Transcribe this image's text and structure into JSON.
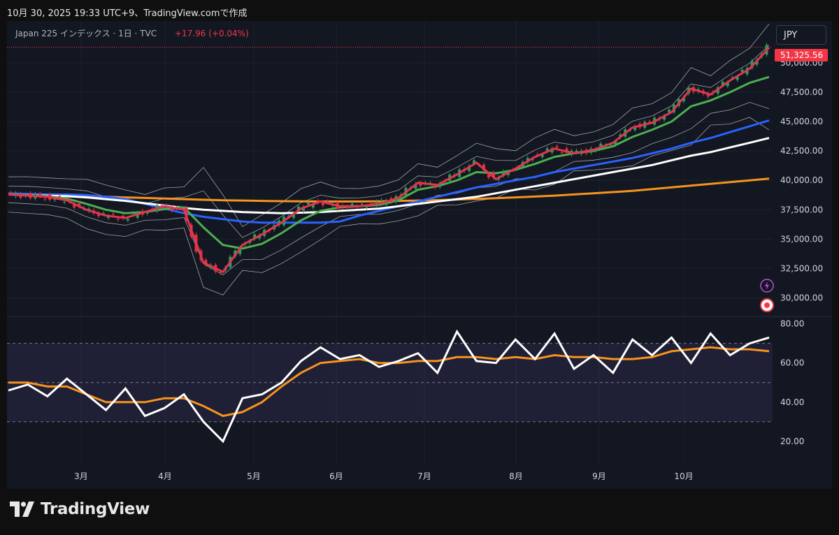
{
  "header": {
    "snapshot_text": "10月 30, 2025 19:33 UTC+9、TradingView.comで作成"
  },
  "legend": {
    "symbol_text": "Japan 225 インデックス · 1日 · TVC",
    "change_text": "+17.96 (+0.04%)"
  },
  "currency_button": "JPY",
  "last_price_label": "51,325.56",
  "footer": {
    "logo_text": "TradingView"
  },
  "colors": {
    "background": "#131722",
    "up_candle": "#2a9d5c",
    "down_candle": "#e5303f",
    "ema_fast": "#e03650",
    "ema_mid": "#4caf50",
    "ma_blue": "#2962ff",
    "ma_white": "#ffffff",
    "ma_orange": "#f7931e",
    "bands": "#d0d0d0",
    "rsi": "#ffffff",
    "rsi_signal": "#f7931e",
    "price_tag": "#f23645"
  },
  "chart_data": [
    {
      "type": "line",
      "name": "price-panel",
      "title": "",
      "xlabel": "",
      "ylabel": "",
      "x_ticks": [
        "3月",
        "4月",
        "5月",
        "6月",
        "7月",
        "8月",
        "9月",
        "10月"
      ],
      "y_ticks": [
        "50,000.00",
        "47,500.00",
        "45,000.00",
        "42,500.00",
        "40,000.00",
        "37,500.00",
        "35,000.00",
        "32,500.00",
        "30,000.00"
      ],
      "ylim": [
        28600,
        51900
      ],
      "last_price": 51325.56,
      "series": [
        {
          "values": [
            38800,
            38700,
            38600,
            38300,
            37500,
            37000,
            36800,
            37300,
            37800,
            37500,
            33000,
            32200,
            34500,
            35400,
            36400,
            37600,
            38200,
            37800,
            37800,
            38000,
            38500,
            39800,
            39600,
            40500,
            41500,
            40100,
            41000,
            42000,
            42700,
            42300,
            42600,
            43200,
            44500,
            44900,
            45800,
            47800,
            47300,
            48500,
            49500,
            51300
          ]
        },
        {
          "values": [
            38800,
            38750,
            38650,
            38450,
            38000,
            37500,
            37200,
            37300,
            37550,
            37700,
            36000,
            34500,
            34200,
            34600,
            35500,
            36600,
            37400,
            37700,
            37800,
            37900,
            38300,
            39200,
            39500,
            40000,
            40700,
            40600,
            40900,
            41400,
            42000,
            42300,
            42500,
            42900,
            43700,
            44300,
            45000,
            46300,
            46800,
            47500,
            48300,
            48800
          ]
        },
        {
          "values": [
            38900,
            38850,
            38800,
            38800,
            38750,
            38600,
            38400,
            38000,
            37600,
            37200,
            36900,
            36700,
            36500,
            36400,
            36400,
            36400,
            36400,
            36500,
            37000,
            37400,
            37800,
            38200,
            38600,
            39000,
            39400,
            39700,
            40000,
            40300,
            40700,
            41000,
            41300,
            41600,
            41900,
            42300,
            42700,
            43200,
            43600,
            44100,
            44600,
            45100
          ]
        },
        {
          "values": [
            38800,
            38750,
            38700,
            38650,
            38550,
            38400,
            38250,
            38050,
            37850,
            37650,
            37500,
            37400,
            37300,
            37250,
            37200,
            37250,
            37300,
            37400,
            37500,
            37600,
            37800,
            38000,
            38200,
            38400,
            38600,
            38900,
            39200,
            39500,
            39800,
            40100,
            40400,
            40700,
            41000,
            41300,
            41700,
            42100,
            42400,
            42800,
            43200,
            43600
          ]
        },
        {
          "values": [
            38800,
            38780,
            38750,
            38700,
            38650,
            38600,
            38550,
            38500,
            38450,
            38400,
            38350,
            38300,
            38280,
            38250,
            38230,
            38210,
            38200,
            38200,
            38200,
            38220,
            38250,
            38280,
            38320,
            38370,
            38420,
            38480,
            38550,
            38620,
            38700,
            38800,
            38900,
            39000,
            39100,
            39250,
            39400,
            39550,
            39700,
            39850,
            40000,
            40150
          ]
        }
      ]
    },
    {
      "type": "line",
      "name": "rsi-panel",
      "title": "",
      "y_ticks": [
        "80.00",
        "60.00",
        "40.00",
        "20.00"
      ],
      "ylim": [
        10,
        82
      ],
      "band_levels": [
        70,
        50,
        30
      ],
      "series": [
        {
          "values": [
            46,
            49,
            43,
            52,
            44,
            36,
            47,
            33,
            37,
            44,
            30,
            20,
            42,
            44,
            50,
            61,
            68,
            62,
            64,
            58,
            61,
            65,
            55,
            76,
            61,
            60,
            72,
            62,
            75,
            57,
            64,
            55,
            72,
            64,
            73,
            60,
            75,
            64,
            70,
            73
          ]
        },
        {
          "values": [
            50,
            50,
            48,
            48,
            44,
            40,
            40,
            40,
            42,
            42,
            38,
            33,
            35,
            40,
            48,
            55,
            60,
            61,
            62,
            60,
            60,
            61,
            61,
            63,
            63,
            62,
            63,
            62,
            64,
            63,
            63,
            62,
            62,
            63,
            66,
            67,
            68,
            67,
            67,
            66
          ]
        }
      ]
    }
  ]
}
